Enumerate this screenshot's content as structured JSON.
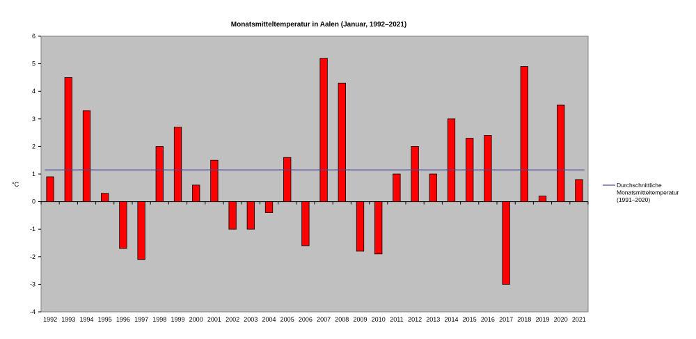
{
  "chart_data": {
    "type": "bar",
    "title": "Monatsmitteltemperatur in Aalen (Januar, 1992–2021)",
    "xlabel": "",
    "ylabel": "°C",
    "ylim": [
      -4,
      6
    ],
    "yticks": [
      6,
      5,
      4,
      3,
      2,
      1,
      0,
      -1,
      -2,
      -3,
      -4
    ],
    "ytick_labels": [
      "6",
      "5",
      "4",
      "3",
      "2",
      "1",
      "0",
      "-1",
      "-2",
      "-3",
      "-4"
    ],
    "categories": [
      "1992",
      "1993",
      "1994",
      "1995",
      "1996",
      "1997",
      "1998",
      "1999",
      "2000",
      "2001",
      "2002",
      "2003",
      "2004",
      "2005",
      "2006",
      "2007",
      "2008",
      "2009",
      "2010",
      "2011",
      "2012",
      "2013",
      "2014",
      "2015",
      "2016",
      "2017",
      "2018",
      "2019",
      "2020",
      "2021"
    ],
    "series": [
      {
        "values": [
          0.9,
          4.5,
          3.3,
          0.3,
          -1.7,
          -2.1,
          2.0,
          2.7,
          0.6,
          1.5,
          -1.0,
          -1.0,
          -0.4,
          1.6,
          -1.6,
          5.2,
          4.3,
          -1.8,
          -1.9,
          1.0,
          2.0,
          1.0,
          3.0,
          2.3,
          2.4,
          -3.0,
          4.9,
          0.2,
          3.5,
          0.8
        ],
        "color": "#ff0000"
      }
    ],
    "reference_line": {
      "name_lines": [
        "Durchschnittliche",
        "Monatsmitteltemperatur",
        "(1991–2020)"
      ],
      "value": 1.15,
      "color": "#4c4ca0"
    },
    "legend_position": "right",
    "grid": false,
    "plot_background": "#c0c0c0"
  }
}
